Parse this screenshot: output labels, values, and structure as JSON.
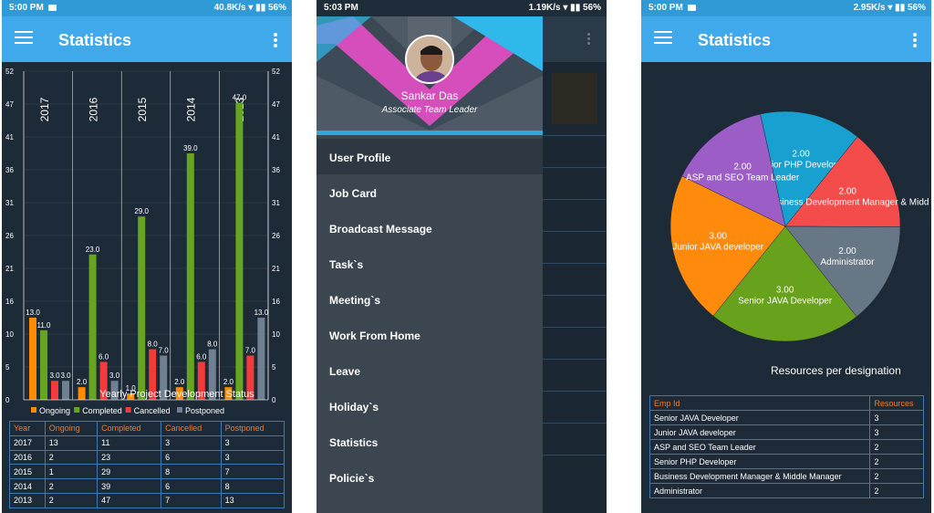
{
  "panel1": {
    "status": {
      "time": "5:00 PM",
      "speed": "40.8K/s",
      "battery": "56%"
    },
    "appbar": {
      "title": "Statistics"
    },
    "chart_data": {
      "type": "bar",
      "title": "Yearly Project Development Status",
      "categories": [
        "2017",
        "2016",
        "2015",
        "2014",
        "2013"
      ],
      "series": [
        {
          "name": "Ongoing",
          "color": "#ff8c00",
          "values": [
            13,
            2,
            1,
            2,
            2
          ]
        },
        {
          "name": "Completed",
          "color": "#66a61e",
          "values": [
            11,
            23,
            29,
            39,
            47
          ]
        },
        {
          "name": "Cancelled",
          "color": "#f43a3a",
          "values": [
            3,
            6,
            8,
            6,
            7
          ]
        },
        {
          "name": "Postponed",
          "color": "#708090",
          "values": [
            3,
            3,
            7,
            8,
            13
          ]
        }
      ],
      "value_labels": [
        [
          "13.0",
          "2.0",
          "1.0",
          "2.0",
          "2.0"
        ],
        [
          "11.0",
          "23.0",
          "29.0",
          "39.0",
          "47.0"
        ],
        [
          "3.0",
          "6.0",
          "8.0",
          "6.0",
          "7.0"
        ],
        [
          "3.0",
          "3.0",
          "7.0",
          "8.0",
          "13.0"
        ]
      ],
      "ylim": [
        0,
        52
      ],
      "yticks": [
        "0",
        "5",
        "10",
        "16",
        "21",
        "26",
        "31",
        "36",
        "41",
        "47",
        "52"
      ],
      "yticks_values": [
        0,
        5.2,
        10.4,
        15.6,
        20.8,
        26,
        31.2,
        36.4,
        41.6,
        46.8,
        52
      ],
      "legend_position": "bottom"
    },
    "table": {
      "headers": [
        "Year",
        "Ongoing",
        "Completed",
        "Cancelled",
        "Postponed"
      ],
      "rows": [
        [
          "2017",
          "13",
          "11",
          "3",
          "3"
        ],
        [
          "2016",
          "2",
          "23",
          "6",
          "3"
        ],
        [
          "2015",
          "1",
          "29",
          "8",
          "7"
        ],
        [
          "2014",
          "2",
          "39",
          "6",
          "8"
        ],
        [
          "2013",
          "2",
          "47",
          "7",
          "13"
        ]
      ]
    }
  },
  "panel2": {
    "status": {
      "time": "5:03 PM",
      "speed": "1.19K/s",
      "battery": "56%"
    },
    "user": {
      "name": "Sankar Das",
      "role": "Associate Team Leader"
    },
    "menu": [
      "User Profile",
      "Job Card",
      "Broadcast Message",
      "Task`s",
      "Meeting`s",
      "Work From Home",
      "Leave",
      "Holiday`s",
      "Statistics",
      "Policie`s"
    ]
  },
  "panel3": {
    "status": {
      "time": "5:00 PM",
      "speed": "2.95K/s",
      "battery": "56%"
    },
    "appbar": {
      "title": "Statistics"
    },
    "chart_data": {
      "type": "pie",
      "title": "Resources per designation",
      "slices": [
        {
          "label": "Senior PHP Developer",
          "value": 2,
          "value_label": "2.00",
          "color": "#17a0d0"
        },
        {
          "label": "Business Development Manager  & Midd",
          "value": 2,
          "value_label": "2.00",
          "color": "#f44b4b"
        },
        {
          "label": "Administrator",
          "value": 2,
          "value_label": "2.00",
          "color": "#687785"
        },
        {
          "label": "Senior JAVA Developer",
          "value": 3,
          "value_label": "3.00",
          "color": "#68a11c"
        },
        {
          "label": "Junior JAVA developer",
          "value": 3,
          "value_label": "3.00",
          "color": "#ff8a0c"
        },
        {
          "label": "ASP and SEO Team Leader",
          "value": 2,
          "value_label": "2.00",
          "color": "#9c5ec6"
        }
      ]
    },
    "table": {
      "headers": [
        "Emp Id",
        "Resources"
      ],
      "rows": [
        [
          "Senior JAVA Developer",
          "3"
        ],
        [
          "Junior JAVA developer",
          "3"
        ],
        [
          "ASP and SEO Team Leader",
          "2"
        ],
        [
          "Senior PHP Developer",
          "2"
        ],
        [
          "Business Development Manager  & Middle Manager",
          "2"
        ],
        [
          "Administrator",
          "2"
        ]
      ]
    }
  }
}
